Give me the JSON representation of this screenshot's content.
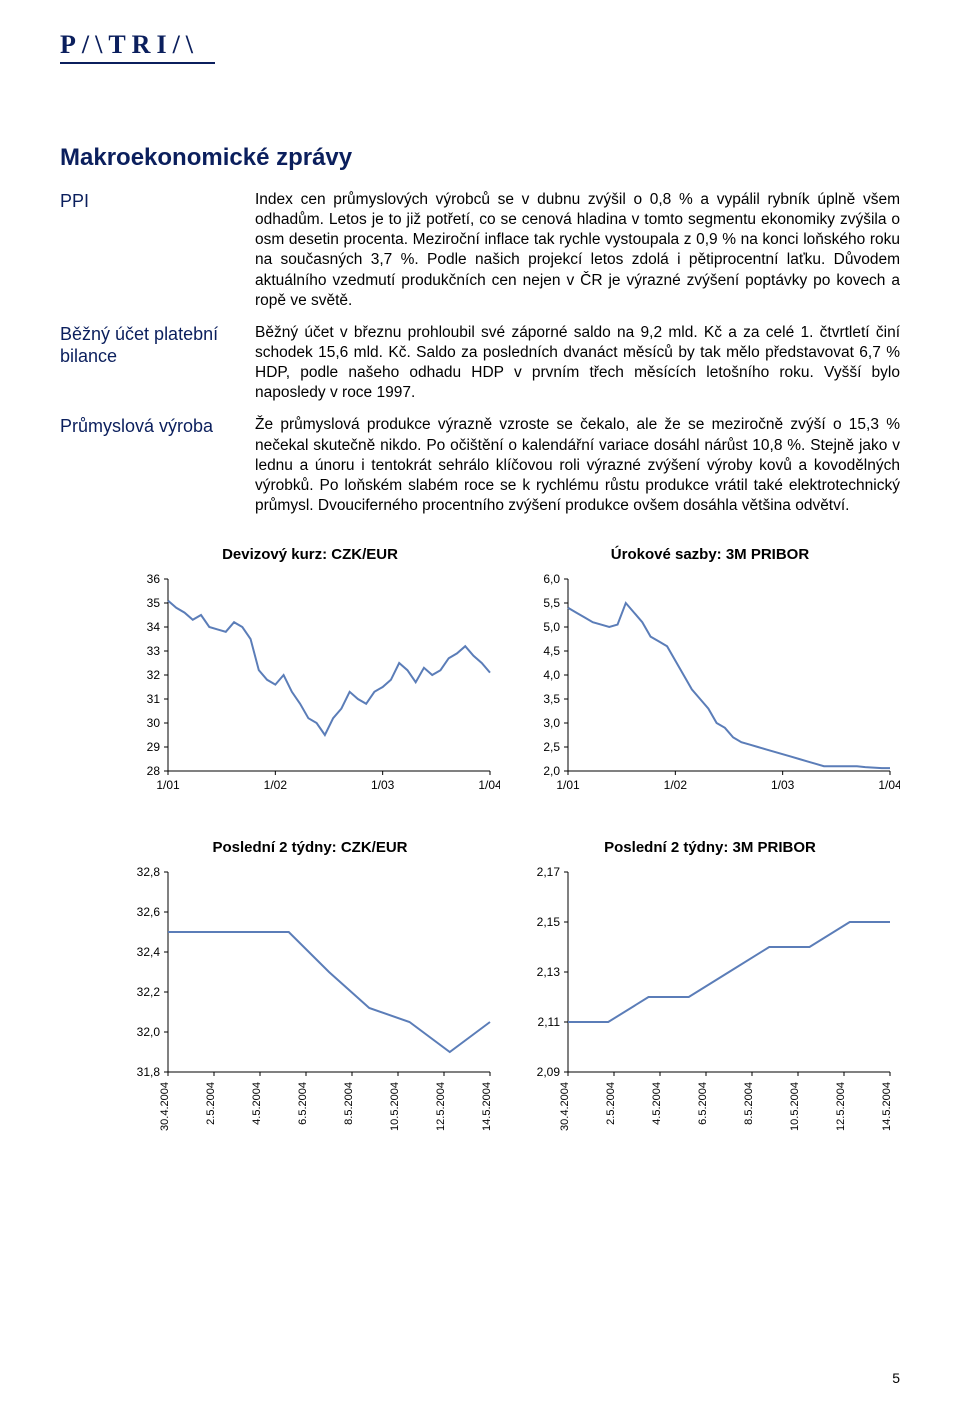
{
  "logo": "P/\\TRI/\\",
  "page_number": "5",
  "title": "Makroekonomické zprávy",
  "sections": [
    {
      "label": "PPI",
      "text": "Index cen průmyslových výrobců se v dubnu zvýšil o 0,8 % a vypálil rybník úplně všem odhadům. Letos je to již potřetí, co se cenová hladina v tomto segmentu ekonomiky zvýšila o osm desetin procenta. Meziroční inflace tak rychle vystoupala z 0,9 % na konci loňského roku na současných 3,7 %. Podle našich projekcí letos zdolá i pětiprocentní laťku. Důvodem aktuálního vzedmutí produkčních cen nejen v ČR je výrazné zvýšení poptávky po kovech a ropě ve světě."
    },
    {
      "label": "Běžný účet platební bilance",
      "text": "Běžný účet v březnu prohloubil své záporné saldo na 9,2 mld. Kč a za celé 1. čtvrtletí činí schodek 15,6 mld. Kč. Saldo za posledních dvanáct měsíců by tak mělo představovat 6,7 % HDP, podle našeho odhadu HDP v prvním třech měsících letošního roku. Vyšší bylo naposledy v roce 1997."
    },
    {
      "label": "Průmyslová výroba",
      "text": "Že průmyslová produkce výrazně vzroste se čekalo, ale že se meziročně zvýší o 15,3 % nečekal skutečně nikdo. Po očištění o kalendářní variace dosáhl nárůst 10,8 %. Stejně jako v lednu a únoru i tentokrát sehrálo klíčovou roli výrazné zvýšení výroby kovů a kovodělných výrobků. Po loňském slabém roce se k rychlému růstu produkce vrátil také elektrotechnický průmysl. Dvouciferného procentního zvýšení produkce ovšem dosáhla většina odvětví."
    }
  ],
  "chart1": {
    "title": "Devizový kurz: CZK/EUR",
    "type": "line",
    "line_color": "#5b7db8",
    "yticks": [
      "28",
      "29",
      "30",
      "31",
      "32",
      "33",
      "34",
      "35",
      "36"
    ],
    "ymin": 28,
    "ymax": 36,
    "xticks": [
      "1/01",
      "1/02",
      "1/03",
      "1/04"
    ],
    "values": [
      35.1,
      34.8,
      34.6,
      34.3,
      34.5,
      34.0,
      33.9,
      33.8,
      34.2,
      34.0,
      33.5,
      32.2,
      31.8,
      31.6,
      32.0,
      31.3,
      30.8,
      30.2,
      30.0,
      29.5,
      30.2,
      30.6,
      31.3,
      31.0,
      30.8,
      31.3,
      31.5,
      31.8,
      32.5,
      32.2,
      31.7,
      32.3,
      32.0,
      32.2,
      32.7,
      32.9,
      33.2,
      32.8,
      32.5,
      32.1
    ]
  },
  "chart2": {
    "title": "Úrokové sazby: 3M PRIBOR",
    "type": "line",
    "line_color": "#5b7db8",
    "yticks": [
      "2,0",
      "2,5",
      "3,0",
      "3,5",
      "4,0",
      "4,5",
      "5,0",
      "5,5",
      "6,0"
    ],
    "ymin": 2.0,
    "ymax": 6.0,
    "xticks": [
      "1/01",
      "1/02",
      "1/03",
      "1/04"
    ],
    "values": [
      5.4,
      5.3,
      5.2,
      5.1,
      5.05,
      5.0,
      5.05,
      5.5,
      5.3,
      5.1,
      4.8,
      4.7,
      4.6,
      4.3,
      4.0,
      3.7,
      3.5,
      3.3,
      3.0,
      2.9,
      2.7,
      2.6,
      2.55,
      2.5,
      2.45,
      2.4,
      2.35,
      2.3,
      2.25,
      2.2,
      2.15,
      2.1,
      2.1,
      2.1,
      2.1,
      2.1,
      2.08,
      2.07,
      2.06,
      2.06
    ]
  },
  "chart3": {
    "title": "Poslední 2 týdny: CZK/EUR",
    "type": "line",
    "line_color": "#5b7db8",
    "yticks": [
      "31,8",
      "32,0",
      "32,2",
      "32,4",
      "32,6",
      "32,8"
    ],
    "ymin": 31.8,
    "ymax": 32.8,
    "xticks": [
      "30.4.2004",
      "2.5.2004",
      "4.5.2004",
      "6.5.2004",
      "8.5.2004",
      "10.5.2004",
      "12.5.2004",
      "14.5.2004"
    ],
    "values": [
      32.5,
      32.5,
      32.5,
      32.5,
      32.3,
      32.12,
      32.05,
      31.9,
      32.05
    ]
  },
  "chart4": {
    "title": "Poslední 2 týdny: 3M PRIBOR",
    "type": "line",
    "line_color": "#5b7db8",
    "yticks": [
      "2,09",
      "2,11",
      "2,13",
      "2,15",
      "2,17"
    ],
    "ymin": 2.09,
    "ymax": 2.17,
    "xticks": [
      "30.4.2004",
      "2.5.2004",
      "4.5.2004",
      "6.5.2004",
      "8.5.2004",
      "10.5.2004",
      "12.5.2004",
      "14.5.2004"
    ],
    "values": [
      2.11,
      2.11,
      2.12,
      2.12,
      2.13,
      2.14,
      2.14,
      2.15,
      2.15
    ]
  }
}
